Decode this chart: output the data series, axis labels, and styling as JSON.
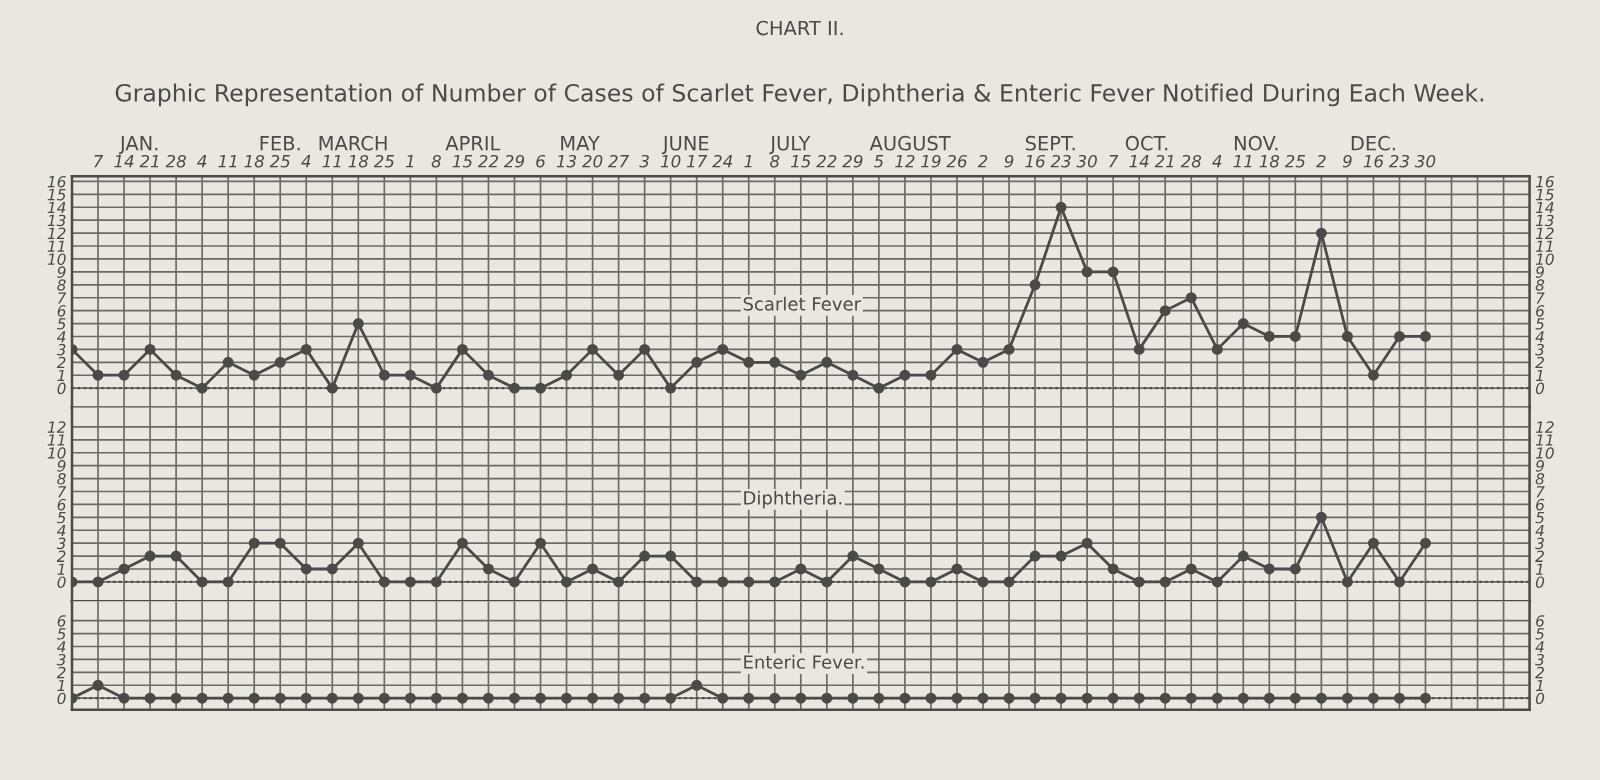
{
  "chart_data": [
    {
      "type": "line",
      "title": "CHART II.",
      "subtitle": "Graphic Representation of Number of Cases of Scarlet Fever, Diphtheria & Enteric Fever Notified During Each Week.",
      "annotations": [
        "JAN.",
        "FEB.",
        "MARCH",
        "APRIL",
        "MAY",
        "JUNE",
        "JULY",
        "AUGUST",
        "SEPT.",
        "OCT.",
        "NOV.",
        "DEC."
      ],
      "categories": [
        null,
        "7",
        "14",
        "21",
        "28",
        "4",
        "11",
        "18",
        "25",
        "4",
        "11",
        "18",
        "25",
        "1",
        "8",
        "15",
        "22",
        "29",
        "6",
        "13",
        "20",
        "27",
        "3",
        "10",
        "17",
        "24",
        "1",
        "8",
        "15",
        "22",
        "29",
        "5",
        "12",
        "19",
        "26",
        "2",
        "9",
        "16",
        "23",
        "30",
        "7",
        "14",
        "21",
        "28",
        "4",
        "11",
        "18",
        "25",
        "2",
        "9",
        "16",
        "23",
        "30",
        null,
        null,
        null,
        null
      ],
      "series": [
        {
          "name": "Scarlet Fever",
          "color": "#4a4a48",
          "values": [
            3,
            1,
            1,
            3,
            1,
            0,
            2,
            1,
            2,
            3,
            0,
            5,
            1,
            1,
            0,
            3,
            1,
            0,
            0,
            1,
            3,
            1,
            3,
            0,
            2,
            3,
            2,
            2,
            1,
            2,
            1,
            0,
            1,
            1,
            3,
            2,
            3,
            8,
            14,
            9,
            9,
            3,
            6,
            7,
            3,
            5,
            4,
            4,
            12,
            4,
            1,
            4,
            4,
            null,
            null,
            null,
            null
          ]
        }
      ],
      "ylim": [
        -1.5,
        16.4
      ],
      "yticks": [
        0,
        1,
        2,
        3,
        4,
        5,
        6,
        7,
        8,
        9,
        10,
        11,
        12,
        13,
        14,
        15,
        16
      ],
      "y2lim": [
        -1.5,
        16.4
      ],
      "y2ticks": [
        0,
        1,
        2,
        3,
        4,
        5,
        6,
        7,
        8,
        9,
        10,
        11,
        12,
        13,
        14,
        15,
        16
      ],
      "grid": true,
      "marker": "circle",
      "line_style": "solid",
      "legend": false,
      "ref_lines": [
        {
          "axis": "y",
          "value": 0,
          "line_style": "dotted"
        }
      ]
    },
    {
      "type": "line",
      "categories": [
        null,
        "7",
        "14",
        "21",
        "28",
        "4",
        "11",
        "18",
        "25",
        "4",
        "11",
        "18",
        "25",
        "1",
        "8",
        "15",
        "22",
        "29",
        "6",
        "13",
        "20",
        "27",
        "3",
        "10",
        "17",
        "24",
        "1",
        "8",
        "15",
        "22",
        "29",
        "5",
        "12",
        "19",
        "26",
        "2",
        "9",
        "16",
        "23",
        "30",
        "7",
        "14",
        "21",
        "28",
        "4",
        "11",
        "18",
        "25",
        "2",
        "9",
        "16",
        "23",
        "30",
        null,
        null,
        null,
        null
      ],
      "series": [
        {
          "name": "Diphtheria.",
          "color": "#4a4a48",
          "values": [
            0,
            0,
            1,
            2,
            2,
            0,
            0,
            3,
            3,
            1,
            1,
            3,
            0,
            0,
            0,
            3,
            1,
            0,
            3,
            0,
            1,
            0,
            2,
            2,
            0,
            0,
            0,
            0,
            1,
            0,
            2,
            1,
            0,
            0,
            1,
            0,
            0,
            2,
            2,
            3,
            1,
            0,
            0,
            1,
            0,
            2,
            1,
            1,
            5,
            0,
            3,
            0,
            3,
            null,
            null,
            null,
            null
          ]
        }
      ],
      "ylim": [
        -1.5,
        13.5
      ],
      "yticks": [
        0,
        1,
        2,
        3,
        4,
        5,
        6,
        7,
        8,
        9,
        10,
        11,
        12
      ],
      "y2lim": [
        -1.5,
        13.5
      ],
      "y2ticks": [
        0,
        1,
        2,
        3,
        4,
        5,
        6,
        7,
        8,
        9,
        10,
        11,
        12
      ],
      "grid": true,
      "marker": "circle",
      "line_style": "solid",
      "legend": false,
      "tick_labels": "y",
      "ref_lines": [
        {
          "axis": "y",
          "value": 0,
          "line_style": "dotted"
        }
      ]
    },
    {
      "type": "line",
      "categories": [
        null,
        "7",
        "14",
        "21",
        "28",
        "4",
        "11",
        "18",
        "25",
        "4",
        "11",
        "18",
        "25",
        "1",
        "8",
        "15",
        "22",
        "29",
        "6",
        "13",
        "20",
        "27",
        "3",
        "10",
        "17",
        "24",
        "1",
        "8",
        "15",
        "22",
        "29",
        "5",
        "12",
        "19",
        "26",
        "2",
        "9",
        "16",
        "23",
        "30",
        "7",
        "14",
        "21",
        "28",
        "4",
        "11",
        "18",
        "25",
        "2",
        "9",
        "16",
        "23",
        "30",
        null,
        null,
        null,
        null
      ],
      "series": [
        {
          "name": "Enteric Fever.",
          "color": "#4a4a48",
          "values": [
            0,
            1,
            0,
            0,
            0,
            0,
            0,
            0,
            0,
            0,
            0,
            0,
            0,
            0,
            0,
            0,
            0,
            0,
            0,
            0,
            0,
            0,
            0,
            0,
            1,
            0,
            0,
            0,
            0,
            0,
            0,
            0,
            0,
            0,
            0,
            0,
            0,
            0,
            0,
            0,
            0,
            0,
            0,
            0,
            0,
            0,
            0,
            0,
            0,
            0,
            0,
            0,
            0,
            null,
            null,
            null,
            null
          ]
        }
      ],
      "ylim": [
        -0.9,
        7.5
      ],
      "yticks": [
        0,
        1,
        2,
        3,
        4,
        5,
        6
      ],
      "y2lim": [
        -0.9,
        7.5
      ],
      "y2ticks": [
        0,
        1,
        2,
        3,
        4,
        5,
        6
      ],
      "grid": true,
      "marker": "circle",
      "line_style": "solid",
      "legend": false,
      "tick_labels": "y",
      "ref_lines": [
        {
          "axis": "y",
          "value": 0,
          "line_style": "dotted"
        }
      ]
    }
  ]
}
